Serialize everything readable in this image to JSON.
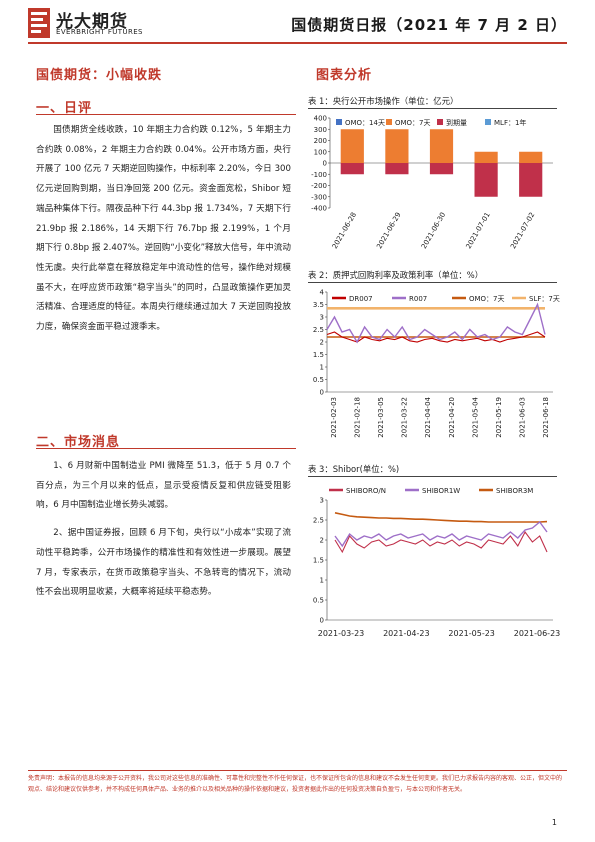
{
  "header": {
    "logo_text": "光大期货",
    "logo_en": "EVERBRIGHT FUTURES",
    "report_title": "国债期货日报（2021 年 7 月 2 日）"
  },
  "left": {
    "title": "国债期货：小幅收跌",
    "section1": {
      "heading": "一、日评",
      "paragraph": "国债期货全线收跌，10 年期主力合约跌 0.12%，5 年期主力合约跌 0.08%，2 年期主力合约跌 0.04%。公开市场方面，央行开展了 100 亿元 7 天期逆回购操作，中标利率 2.20%，今日 300 亿元逆回购到期，当日净回笼 200 亿元。资金面宽松，Shibor 短端品种集体下行。隔夜品种下行 44.3bp 报 1.734%，7 天期下行 21.9bp 报 2.186%，14 天期下行 76.7bp 报 2.199%，1 个月期下行 0.8bp 报 2.407%。逆回购“小变化”释放大信号，年中流动性无虞。央行此举意在释放稳定年中流动性的信号，操作绝对规模虽不大，在呼应货币政策“稳字当头”的同时，凸显政策操作更加灵活精准、合理适度的特征。本周央行继续通过加大 7 天逆回购投放力度，确保资金面平稳过渡季末。"
    },
    "section2": {
      "heading": "二、市场消息",
      "paragraphs": [
        "1、6 月财新中国制造业 PMI 微降至 51.3，低于 5 月 0.7 个百分点，为三个月以来的低点，显示受疫情反复和供应链受阻影响，6 月中国制造业增长势头减弱。",
        "2、据中国证券报，回顾 6 月下旬，央行以“小成本”实现了流动性平稳跨季，公开市场操作的精准性和有效性进一步展现。展望 7 月，专家表示，在货币政策稳字当头、不急转弯的情况下，流动性不会出现明显收紧，大概率将延续平稳态势。"
      ]
    }
  },
  "right": {
    "heading": "图表分析",
    "chart1_caption": "表 1：央行公开市场操作（单位：亿元）",
    "chart2_caption": "表 2：质押式回购利率及政策利率（单位：%）",
    "chart3_caption": "表 3：Shibor(单位：%)"
  },
  "footer": {
    "disclaimer": "免责声明：本报告的信息均来源于公开资料，我公司对这些信息的准确性、可靠性和完整性不作任何保证，也不保证所包含的信息和建议不会发生任何变更。我们已力求报告内容的客观、公正，但文中的观点、结论和建议仅供参考，并不构成任何具体产品、业务的推介以及相关品种的操作依据和建议，投资者据此作出的任何投资决策自负盈亏，与本公司和作者无关。",
    "page_number": "1"
  },
  "colors": {
    "accent": "#c0392b",
    "omo14": "#4472c4",
    "omo7": "#ed7d31",
    "maturity": "#c0304a",
    "mlf": "#5b9bd5",
    "dr007": "#c00000",
    "r007": "#9e6fc8",
    "omo7_line": "#c55a11",
    "slf7": "#f2b36b",
    "shibor_on": "#c0304a",
    "shibor_1w": "#9e6fc8",
    "shibor_3m": "#c55a11"
  },
  "chart_data": [
    {
      "type": "bar",
      "legend": [
        "OMO：14天",
        "OMO：7天",
        "到期量",
        "MLF：1年"
      ],
      "categories": [
        "2021-06-28",
        "2021-06-29",
        "2021-06-30",
        "2021-07-01",
        "2021-07-02"
      ],
      "series": [
        {
          "name": "OMO：14天",
          "values": [
            0,
            0,
            0,
            0,
            0
          ]
        },
        {
          "name": "OMO：7天",
          "values": [
            300,
            300,
            300,
            100,
            100
          ]
        },
        {
          "name": "到期量",
          "values": [
            -100,
            -100,
            -100,
            -300,
            -300
          ]
        },
        {
          "name": "MLF：1年",
          "values": [
            0,
            0,
            0,
            0,
            0
          ]
        }
      ],
      "ylim": [
        -400,
        400
      ],
      "yticks": [
        400,
        300,
        200,
        100,
        0,
        -100,
        -200,
        -300,
        -400
      ],
      "grid": false,
      "legend_position": "top"
    },
    {
      "type": "line",
      "legend": [
        "DR007",
        "R007",
        "OMO：7天",
        "SLF：7天"
      ],
      "x_ticks": [
        "2021-02-03",
        "2021-02-18",
        "2021-03-05",
        "2021-03-22",
        "2021-04-04",
        "2021-04-20",
        "2021-05-04",
        "2021-05-19",
        "2021-06-03",
        "2021-06-18"
      ],
      "series": [
        {
          "name": "DR007",
          "values": [
            2.3,
            2.4,
            2.2,
            2.1,
            2.0,
            2.2,
            2.1,
            2.05,
            2.15,
            2.1,
            2.2,
            2.05,
            2.0,
            2.1,
            2.15,
            2.05,
            2.0,
            2.1,
            2.05,
            2.1,
            2.15,
            2.05,
            2.1,
            2.0,
            2.1,
            2.15,
            2.2,
            2.3,
            2.4,
            2.2
          ]
        },
        {
          "name": "R007",
          "values": [
            2.5,
            3.0,
            2.4,
            2.5,
            2.0,
            2.6,
            2.2,
            2.1,
            2.5,
            2.2,
            2.6,
            2.1,
            2.2,
            2.5,
            2.3,
            2.1,
            2.2,
            2.4,
            2.1,
            2.5,
            2.2,
            2.3,
            2.1,
            2.2,
            2.6,
            2.4,
            2.3,
            2.9,
            3.5,
            2.3
          ]
        },
        {
          "name": "OMO：7天",
          "values": [
            2.2,
            2.2
          ]
        },
        {
          "name": "SLF：7天",
          "values": [
            3.35,
            3.35
          ]
        }
      ],
      "ylim": [
        0,
        4
      ],
      "yticks": [
        4,
        3.5,
        3,
        2.5,
        2,
        1.5,
        1,
        0.5,
        0
      ],
      "legend_position": "top"
    },
    {
      "type": "line",
      "legend": [
        "SHIBORO/N",
        "SHIBOR1W",
        "SHIBOR3M"
      ],
      "x_ticks": [
        "2021-03-23",
        "2021-04-23",
        "2021-05-23",
        "2021-06-23"
      ],
      "series": [
        {
          "name": "SHIBORO/N",
          "values": [
            2.0,
            1.7,
            2.1,
            1.9,
            1.8,
            1.95,
            2.0,
            1.85,
            1.9,
            2.0,
            1.95,
            1.9,
            2.0,
            1.85,
            1.95,
            1.9,
            2.0,
            1.85,
            1.95,
            1.9,
            1.8,
            2.0,
            1.95,
            1.9,
            2.1,
            1.85,
            2.2,
            1.95,
            2.1,
            1.7
          ]
        },
        {
          "name": "SHIBOR1W",
          "values": [
            2.1,
            1.85,
            2.15,
            2.0,
            2.1,
            2.05,
            2.15,
            2.0,
            2.1,
            2.15,
            2.05,
            2.1,
            2.15,
            2.0,
            2.1,
            2.05,
            2.15,
            2.0,
            2.1,
            2.05,
            2.0,
            2.15,
            2.1,
            2.05,
            2.2,
            2.05,
            2.25,
            2.3,
            2.45,
            2.2
          ]
        },
        {
          "name": "SHIBOR3M",
          "values": [
            2.68,
            2.64,
            2.6,
            2.58,
            2.57,
            2.56,
            2.55,
            2.55,
            2.54,
            2.54,
            2.53,
            2.52,
            2.52,
            2.51,
            2.5,
            2.49,
            2.48,
            2.47,
            2.47,
            2.46,
            2.46,
            2.45,
            2.45,
            2.45,
            2.45,
            2.45,
            2.45,
            2.45,
            2.45,
            2.46
          ]
        }
      ],
      "ylim": [
        0,
        3
      ],
      "yticks": [
        3,
        2.5,
        2,
        1.5,
        1,
        0.5,
        0
      ],
      "legend_position": "top"
    }
  ]
}
